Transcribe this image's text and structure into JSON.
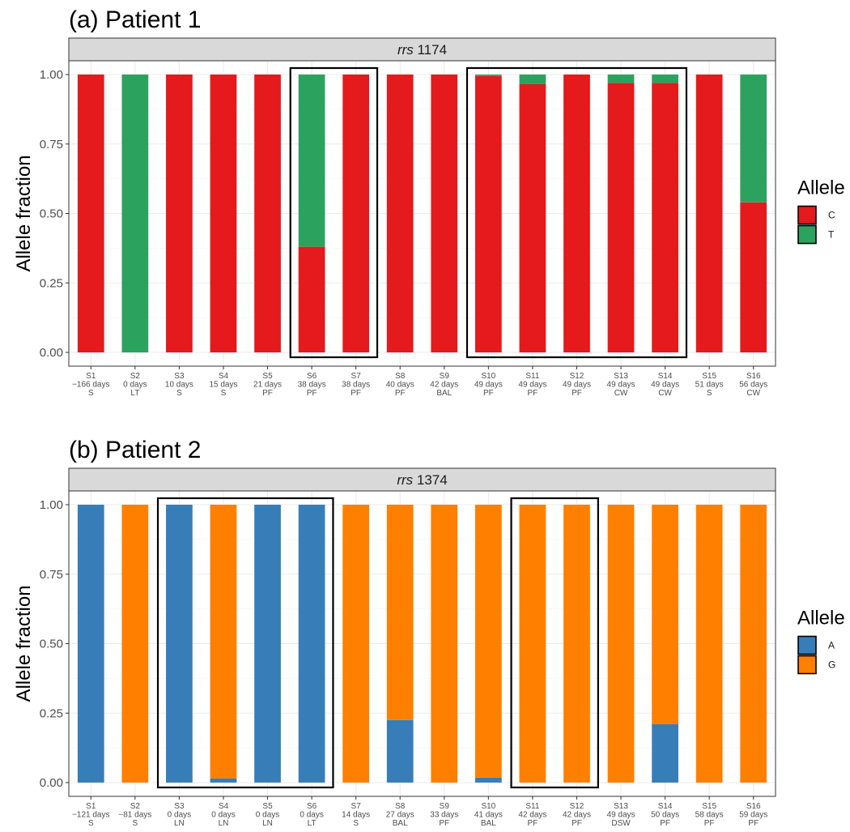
{
  "chart_data": [
    {
      "type": "bar",
      "stacked": true,
      "title": "(a) Patient 1",
      "strip": {
        "gene": "rrs",
        "position": "1174"
      },
      "ylabel": "Allele fraction",
      "ylim": [
        0,
        1
      ],
      "yticks": [
        "0.00",
        "0.25",
        "0.50",
        "0.75",
        "1.00"
      ],
      "grid": true,
      "legend": {
        "title": "Allele",
        "placement": "right",
        "entries": [
          "C",
          "T"
        ]
      },
      "colors": {
        "C": "#e41a1c",
        "T": "#2ca25f"
      },
      "categories": [
        [
          "S1",
          "−166 days",
          "S"
        ],
        [
          "S2",
          "0 days",
          "LT"
        ],
        [
          "S3",
          "10 days",
          "S"
        ],
        [
          "S4",
          "15 days",
          "S"
        ],
        [
          "S5",
          "21 days",
          "PF"
        ],
        [
          "S6",
          "38 days",
          "PF"
        ],
        [
          "S7",
          "38 days",
          "PF"
        ],
        [
          "S8",
          "40 days",
          "PF"
        ],
        [
          "S9",
          "42 days",
          "BAL"
        ],
        [
          "S10",
          "49 days",
          "PF"
        ],
        [
          "S11",
          "49 days",
          "PF"
        ],
        [
          "S12",
          "49 days",
          "PF"
        ],
        [
          "S13",
          "49 days",
          "CW"
        ],
        [
          "S14",
          "49 days",
          "CW"
        ],
        [
          "S15",
          "51 days",
          "S"
        ],
        [
          "S16",
          "56 days",
          "CW"
        ]
      ],
      "series": [
        {
          "name": "C",
          "values": [
            1,
            0,
            1,
            1,
            1,
            0.38,
            1,
            1,
            1,
            0.995,
            0.965,
            1,
            0.97,
            0.97,
            1,
            0.54
          ]
        },
        {
          "name": "T",
          "values": [
            0,
            1,
            0,
            0,
            0,
            0.62,
            0,
            0,
            0,
            0.005,
            0.035,
            0,
            0.03,
            0.03,
            0,
            0.46
          ]
        }
      ],
      "highlight_groups": [
        [
          6,
          7
        ],
        [
          10,
          14
        ]
      ]
    },
    {
      "type": "bar",
      "stacked": true,
      "title": "(b) Patient 2",
      "strip": {
        "gene": "rrs",
        "position": "1374"
      },
      "ylabel": "Allele fraction",
      "ylim": [
        0,
        1
      ],
      "yticks": [
        "0.00",
        "0.25",
        "0.50",
        "0.75",
        "1.00"
      ],
      "grid": true,
      "legend": {
        "title": "Allele",
        "placement": "right",
        "entries": [
          "A",
          "G"
        ]
      },
      "colors": {
        "A": "#377eb8",
        "G": "#ff7f00"
      },
      "categories": [
        [
          "S1",
          "−121 days",
          "S"
        ],
        [
          "S2",
          "−81 days",
          "S"
        ],
        [
          "S3",
          "0 days",
          "LN"
        ],
        [
          "S4",
          "0 days",
          "LN"
        ],
        [
          "S5",
          "0 days",
          "LN"
        ],
        [
          "S6",
          "0 days",
          "LT"
        ],
        [
          "S7",
          "14 days",
          "S"
        ],
        [
          "S8",
          "27 days",
          "BAL"
        ],
        [
          "S9",
          "33 days",
          "PF"
        ],
        [
          "S10",
          "41 days",
          "BAL"
        ],
        [
          "S11",
          "42 days",
          "PF"
        ],
        [
          "S12",
          "42 days",
          "PF"
        ],
        [
          "S13",
          "49 days",
          "DSW"
        ],
        [
          "S14",
          "50 days",
          "PF"
        ],
        [
          "S15",
          "58 days",
          "PF"
        ],
        [
          "S16",
          "59 days",
          "PF"
        ]
      ],
      "series": [
        {
          "name": "A",
          "values": [
            1,
            0,
            1,
            0.015,
            1,
            1,
            0,
            0.225,
            0,
            0.018,
            0,
            0,
            0,
            0.21,
            0,
            0
          ]
        },
        {
          "name": "G",
          "values": [
            0,
            1,
            0,
            0.985,
            0,
            0,
            1,
            0.775,
            1,
            0.982,
            1,
            1,
            1,
            0.79,
            1,
            1
          ]
        }
      ],
      "highlight_groups": [
        [
          3,
          6
        ],
        [
          11,
          12
        ]
      ]
    }
  ]
}
